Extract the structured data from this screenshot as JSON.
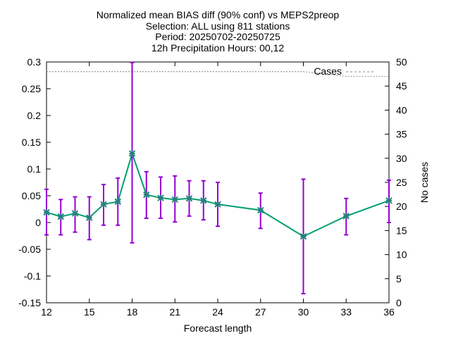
{
  "chart_data": {
    "type": "line",
    "title_lines": [
      "Normalized mean BIAS diff (90% conf) vs MEPS2preop",
      "Selection: ALL using   811 stations",
      "Period: 20250702-20250725",
      "12h Precipitation   Hours: 00,12"
    ],
    "xlabel": "Forecast length",
    "ylabel": "",
    "y2label": "No cases",
    "xlim": [
      12,
      36
    ],
    "ylim": [
      -0.15,
      0.3
    ],
    "y2lim": [
      0,
      50
    ],
    "x_ticks": [
      12,
      15,
      18,
      21,
      24,
      27,
      30,
      33,
      36
    ],
    "y_ticks": [
      -0.15,
      -0.1,
      -0.05,
      0,
      0.05,
      0.1,
      0.15,
      0.2,
      0.25,
      0.3
    ],
    "y_tick_labels": [
      "-0.15",
      "-0.1",
      "-0.05",
      "0",
      "0.05",
      "0.1",
      "0.15",
      "0.2",
      "0.25",
      "0.3"
    ],
    "y2_ticks": [
      0,
      5,
      10,
      15,
      20,
      25,
      30,
      35,
      40,
      45,
      50
    ],
    "grid": false,
    "legend_position": "top-right",
    "series": [
      {
        "name": "",
        "axis": "left",
        "color": "#009e73",
        "marker_color": "#2a7f7f",
        "errorbar_color": "#9400d3",
        "x": [
          12,
          13,
          14,
          15,
          16,
          17,
          18,
          19,
          20,
          21,
          22,
          23,
          24,
          27,
          30,
          33,
          36
        ],
        "y": [
          0.019,
          0.011,
          0.017,
          0.009,
          0.034,
          0.039,
          0.129,
          0.052,
          0.046,
          0.043,
          0.045,
          0.041,
          0.034,
          0.023,
          -0.026,
          0.012,
          0.041
        ],
        "y_low": [
          -0.023,
          -0.023,
          -0.018,
          -0.032,
          -0.005,
          -0.005,
          -0.038,
          0.008,
          0.008,
          0.001,
          0.012,
          0.005,
          -0.007,
          -0.011,
          -0.133,
          -0.023,
          0.0
        ],
        "y_high": [
          0.062,
          0.043,
          0.048,
          0.048,
          0.071,
          0.083,
          0.299,
          0.095,
          0.085,
          0.087,
          0.078,
          0.078,
          0.075,
          0.055,
          0.081,
          0.045,
          0.079
        ]
      },
      {
        "name": "Cases",
        "axis": "right",
        "color": "#a0a0a0",
        "x": [
          12,
          13,
          14,
          15,
          16,
          17,
          18,
          19,
          20,
          21,
          22,
          23,
          24,
          27,
          30,
          33,
          36
        ],
        "y": [
          48,
          48,
          48,
          48,
          48,
          48,
          48,
          48,
          48,
          48,
          48,
          48,
          48,
          48,
          48,
          47,
          47
        ]
      }
    ]
  }
}
